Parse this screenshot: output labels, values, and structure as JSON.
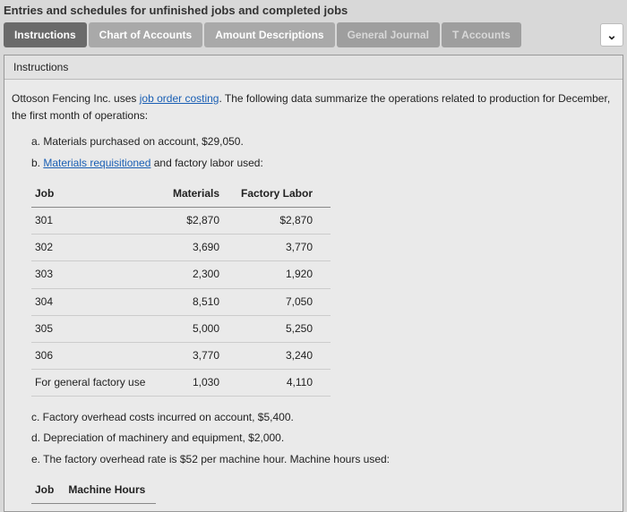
{
  "page": {
    "title": "Entries and schedules for unfinished jobs and completed jobs"
  },
  "tabs": {
    "instructions": "Instructions",
    "chart": "Chart of Accounts",
    "amount": "Amount Descriptions",
    "journal": "General Journal",
    "taccounts": "T Accounts"
  },
  "panel": {
    "header": "Instructions",
    "intro_pre": "Ottoson Fencing Inc. uses ",
    "intro_link": "job order costing",
    "intro_post": ". The following data summarize the operations related to production for December, the first month of operations:",
    "a": "a. Materials purchased on account, $29,050.",
    "b_pre": "b. ",
    "b_link": "Materials requisitioned",
    "b_post": " and factory labor used:",
    "c": "c. Factory overhead costs incurred on account, $5,400.",
    "d": "d. Depreciation of machinery and equipment, $2,000.",
    "e": "e. The factory overhead rate is $52 per machine hour. Machine hours used:"
  },
  "table1": {
    "headers": {
      "job": "Job",
      "materials": "Materials",
      "labor": "Factory Labor"
    },
    "rows": [
      {
        "job": "301",
        "materials": "$2,870",
        "labor": "$2,870"
      },
      {
        "job": "302",
        "materials": "3,690",
        "labor": "3,770"
      },
      {
        "job": "303",
        "materials": "2,300",
        "labor": "1,920"
      },
      {
        "job": "304",
        "materials": "8,510",
        "labor": "7,050"
      },
      {
        "job": "305",
        "materials": "5,000",
        "labor": "5,250"
      },
      {
        "job": "306",
        "materials": "3,770",
        "labor": "3,240"
      },
      {
        "job": "For general factory use",
        "materials": "1,030",
        "labor": "4,110"
      }
    ]
  },
  "table2": {
    "headers": {
      "job": "Job",
      "hours": "Machine Hours"
    }
  }
}
